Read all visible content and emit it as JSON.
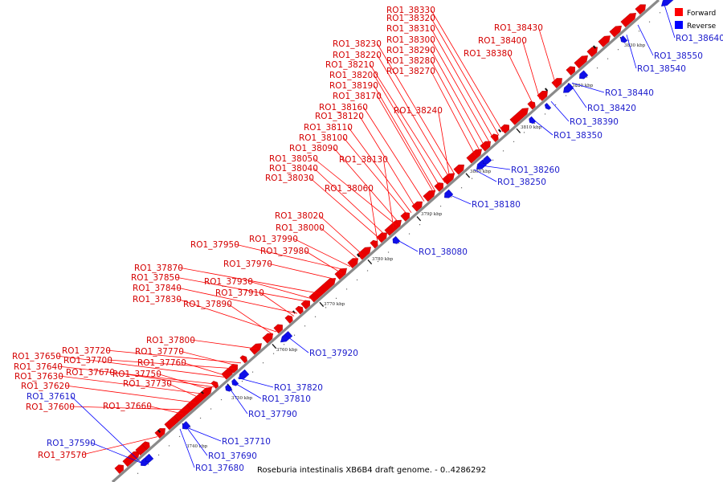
{
  "legend": [
    {
      "label": "Forward",
      "color": "#ff0000"
    },
    {
      "label": "Reverse",
      "color": "#0000ff"
    }
  ],
  "caption": "Roseburia intestinalis XB6B4 draft genome. - 0..4286292",
  "tick_labels": [
    "3740 kbp",
    "3750 kbp",
    "3760 kbp",
    "3770 kbp",
    "3780 kbp",
    "3790 kbp",
    "3800 kbp",
    "3810 kbp",
    "3820 kbp",
    "3830 kbp"
  ],
  "forward_genes": [
    "RO1_38330",
    "RO1_38320",
    "RO1_38310",
    "RO1_38300",
    "RO1_38290",
    "RO1_38280",
    "RO1_38270",
    "RO1_38430",
    "RO1_38400",
    "RO1_38380",
    "RO1_38230",
    "RO1_38220",
    "RO1_38210",
    "RO1_38200",
    "RO1_38190",
    "RO1_38170",
    "RO1_38160",
    "RO1_38240",
    "RO1_38120",
    "RO1_38110",
    "RO1_38100",
    "RO1_38090",
    "RO1_38050",
    "RO1_38130",
    "RO1_38040",
    "RO1_38030",
    "RO1_38060",
    "RO1_38020",
    "RO1_38000",
    "RO1_37950",
    "RO1_37990",
    "RO1_37980",
    "RO1_37970",
    "RO1_37870",
    "RO1_37850",
    "RO1_37930",
    "RO1_37840",
    "RO1_37910",
    "RO1_37830",
    "RO1_37890",
    "RO1_37800",
    "RO1_37720",
    "RO1_37770",
    "RO1_37650",
    "RO1_37700",
    "RO1_37760",
    "RO1_37640",
    "RO1_37670",
    "RO1_37750",
    "RO1_37630",
    "RO1_37730",
    "RO1_37620",
    "RO1_37600",
    "RO1_37660",
    "RO1_37570"
  ],
  "reverse_genes": [
    "RO1_38640",
    "RO1_38550",
    "RO1_38540",
    "RO1_38440",
    "RO1_38420",
    "RO1_38390",
    "RO1_38350",
    "RO1_38260",
    "RO1_38250",
    "RO1_38180",
    "RO1_38080",
    "RO1_37920",
    "RO1_37820",
    "RO1_37810",
    "RO1_37790",
    "RO1_37610",
    "RO1_37710",
    "RO1_37590",
    "RO1_37690",
    "RO1_37680"
  ]
}
